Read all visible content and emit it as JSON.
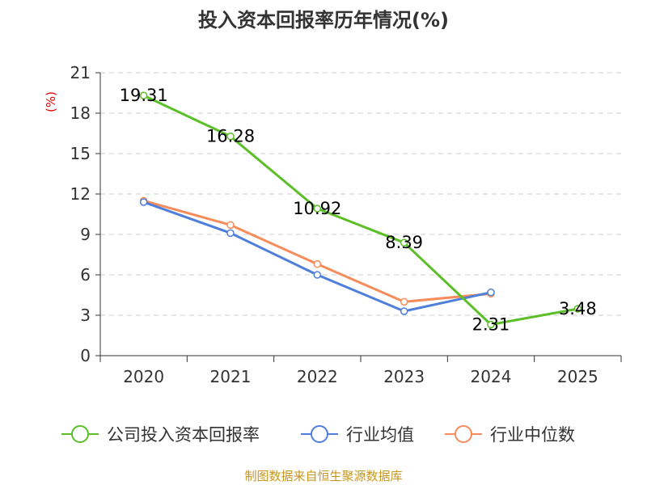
{
  "chart_data": {
    "type": "line",
    "title": "投入资本回报率历年情况(%)",
    "ylabel": "(%)",
    "xlabel": "",
    "categories": [
      "2020",
      "2021",
      "2022",
      "2023",
      "2024",
      "2025"
    ],
    "ylim": [
      0,
      21
    ],
    "yticks": [
      0,
      3,
      6,
      9,
      12,
      15,
      18,
      21
    ],
    "grid": true,
    "legend_position": "bottom",
    "series": [
      {
        "name": "公司投入资本回报率",
        "color": "#5cbf2a",
        "values": [
          19.31,
          16.28,
          10.92,
          8.39,
          2.31,
          3.48
        ],
        "labels": [
          "19.31",
          "16.28",
          "10.92",
          "8.39",
          "2.31",
          "3.48"
        ]
      },
      {
        "name": "行业均值",
        "color": "#4f7fdb",
        "values": [
          11.4,
          9.1,
          6.0,
          3.3,
          4.7,
          null
        ]
      },
      {
        "name": "行业中位数",
        "color": "#f58c5a",
        "values": [
          11.5,
          9.7,
          6.8,
          4.0,
          4.6,
          null
        ]
      }
    ],
    "source": "制图数据来自恒生聚源数据库"
  }
}
